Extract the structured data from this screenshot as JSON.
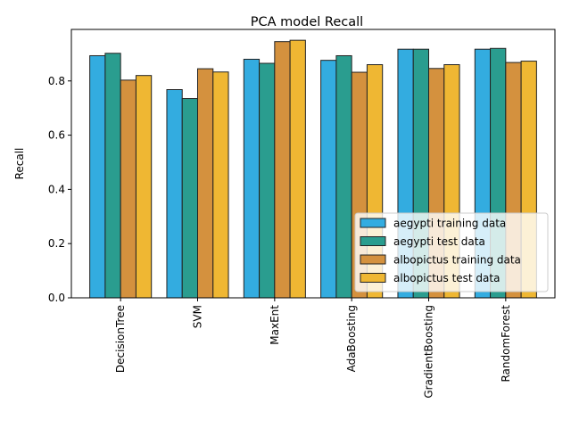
{
  "chart_data": {
    "type": "bar",
    "title": "PCA model Recall",
    "xlabel": "",
    "ylabel": "Recall",
    "ylim": [
      0,
      0.99
    ],
    "yticks": [
      "0.0",
      "0.2",
      "0.4",
      "0.6",
      "0.8"
    ],
    "categories": [
      "DecisionTree",
      "SVM",
      "MaxEnt",
      "AdaBoosting",
      "GradientBoosting",
      "RandomForest"
    ],
    "series": [
      {
        "name": "aegypti training data",
        "color": "#33ace0",
        "values": [
          0.893,
          0.768,
          0.88,
          0.876,
          0.917,
          0.917
        ]
      },
      {
        "name": "aegypti test data",
        "color": "#2a9d8f",
        "values": [
          0.902,
          0.735,
          0.865,
          0.893,
          0.917,
          0.92
        ]
      },
      {
        "name": "albopictus training data",
        "color": "#d4913e",
        "values": [
          0.803,
          0.845,
          0.945,
          0.832,
          0.846,
          0.868
        ]
      },
      {
        "name": "albopictus test data",
        "color": "#efb733",
        "values": [
          0.82,
          0.833,
          0.95,
          0.86,
          0.86,
          0.873
        ]
      }
    ],
    "legend_position": "lower-right",
    "grid": false
  }
}
